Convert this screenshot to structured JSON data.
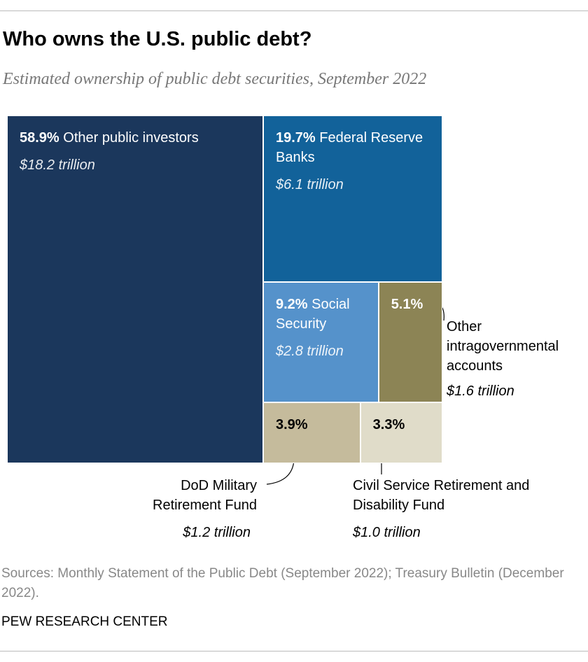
{
  "chart_data": {
    "type": "treemap",
    "title": "Who owns the U.S. public debt?",
    "subtitle": "Estimated ownership of public debt securities, September 2022",
    "categories": [
      "Other public investors",
      "Federal Reserve Banks",
      "Social Security",
      "Other intragovernmental accounts",
      "DoD Military Retirement Fund",
      "Civil Service Retirement and Disability Fund"
    ],
    "values": [
      58.9,
      19.7,
      9.2,
      5.1,
      3.9,
      3.3
    ],
    "value_labels": [
      "58.9%",
      "19.7%",
      "9.2%",
      "5.1%",
      "3.9%",
      "3.3%"
    ],
    "amounts": [
      18.2,
      6.1,
      2.8,
      1.6,
      1.2,
      1.0
    ],
    "amount_labels": [
      "$18.2 trillion",
      "$6.1 trillion",
      "$2.8 trillion",
      "$1.6 trillion",
      "$1.2 trillion",
      "$1.0 trillion"
    ],
    "colors": [
      "#1b375c",
      "#12629a",
      "#5592cb",
      "#8c8455",
      "#c5bb9c",
      "#e0dcc9"
    ],
    "source": "Sources: Monthly Statement of the Public Debt (September 2022); Treasury Bulletin (December 2022).",
    "credit": "PEW RESEARCH CENTER"
  }
}
